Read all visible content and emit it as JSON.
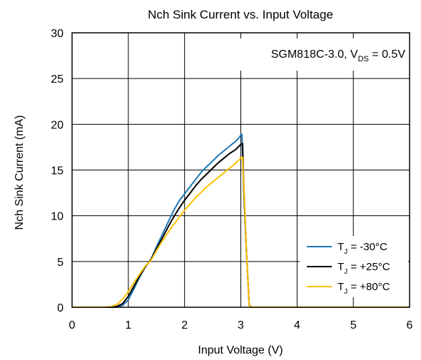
{
  "chart_data": {
    "type": "line",
    "title": "Nch Sink Current vs. Input Voltage",
    "xlabel": "Input Voltage (V)",
    "ylabel": "Nch Sink Current (mA)",
    "xlim": [
      0,
      6
    ],
    "ylim": [
      0,
      30
    ],
    "xticks": [
      0,
      1,
      2,
      3,
      4,
      5,
      6
    ],
    "yticks": [
      0,
      5,
      10,
      15,
      20,
      25,
      30
    ],
    "grid": true,
    "legend_position": "bottom-right",
    "annotation": {
      "text_main": "SGM818C-3.0, V",
      "text_sub": "DS",
      "text_tail": " = 0.5V"
    },
    "series": [
      {
        "name_main": "T",
        "name_sub": "J",
        "name_tail": " = -30°C",
        "color": "#1f77b4",
        "x": [
          0,
          0.8,
          0.9,
          1.0,
          1.1,
          1.2,
          1.3,
          1.4,
          1.5,
          1.6,
          1.7,
          1.8,
          1.9,
          2.0,
          2.1,
          2.2,
          2.3,
          2.4,
          2.5,
          2.6,
          2.7,
          2.8,
          2.9,
          2.95,
          3.0,
          3.02,
          3.05,
          3.1,
          3.15,
          3.2,
          6.0
        ],
        "y": [
          0,
          0,
          0.2,
          0.8,
          2.0,
          3.3,
          4.4,
          5.2,
          6.6,
          7.9,
          9.2,
          10.5,
          11.6,
          12.4,
          13.2,
          14.0,
          14.8,
          15.4,
          16.0,
          16.6,
          17.1,
          17.6,
          18.1,
          18.4,
          18.8,
          18.9,
          13.0,
          6.0,
          0.2,
          0,
          0
        ]
      },
      {
        "name_main": "T",
        "name_sub": "J",
        "name_tail": " = +25°C",
        "color": "#000000",
        "x": [
          0,
          0.7,
          0.8,
          0.9,
          1.0,
          1.1,
          1.2,
          1.3,
          1.4,
          1.5,
          1.6,
          1.7,
          1.8,
          1.9,
          2.0,
          2.1,
          2.2,
          2.3,
          2.4,
          2.5,
          2.6,
          2.7,
          2.8,
          2.9,
          2.95,
          3.0,
          3.03,
          3.06,
          3.1,
          3.15,
          3.2,
          6.0
        ],
        "y": [
          0,
          0,
          0.1,
          0.4,
          1.2,
          2.3,
          3.4,
          4.4,
          5.2,
          6.4,
          7.5,
          8.7,
          9.8,
          10.8,
          11.7,
          12.5,
          13.3,
          14.0,
          14.6,
          15.2,
          15.8,
          16.3,
          16.8,
          17.2,
          17.5,
          17.8,
          17.9,
          12.0,
          6.0,
          0.2,
          0,
          0
        ]
      },
      {
        "name_main": "T",
        "name_sub": "J",
        "name_tail": " = +80°C",
        "color": "#ffc000",
        "x": [
          0,
          0.6,
          0.7,
          0.8,
          0.9,
          1.0,
          1.1,
          1.2,
          1.3,
          1.4,
          1.5,
          1.6,
          1.7,
          1.8,
          1.9,
          2.0,
          2.1,
          2.2,
          2.3,
          2.4,
          2.5,
          2.6,
          2.7,
          2.8,
          2.9,
          2.95,
          3.0,
          3.03,
          3.07,
          3.1,
          3.15,
          3.2,
          6.0
        ],
        "y": [
          0,
          0,
          0.1,
          0.3,
          0.9,
          1.7,
          2.7,
          3.6,
          4.5,
          5.1,
          6.2,
          7.2,
          8.1,
          9.0,
          9.8,
          10.6,
          11.3,
          12.0,
          12.6,
          13.2,
          13.7,
          14.2,
          14.7,
          15.2,
          15.7,
          16.0,
          16.3,
          16.4,
          11.0,
          6.0,
          0.2,
          0,
          0
        ]
      }
    ]
  }
}
